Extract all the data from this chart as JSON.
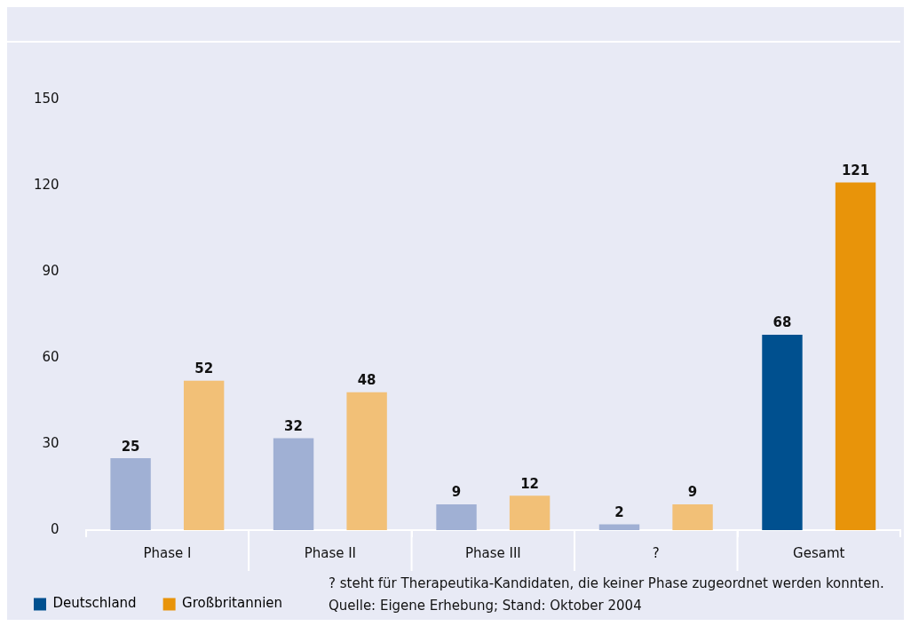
{
  "chart_data": {
    "type": "bar",
    "categories": [
      "Phase I",
      "Phase II",
      "Phase III",
      "?",
      "Gesamt"
    ],
    "series": [
      {
        "name": "Deutschland",
        "color": "#00508f",
        "colors": [
          "#a0b0d4",
          "#a0b0d4",
          "#a0b0d4",
          "#a0b0d4",
          "#00508f"
        ],
        "values": [
          25,
          32,
          9,
          2,
          68
        ]
      },
      {
        "name": "Großbritannien",
        "color": "#e8940a",
        "colors": [
          "#f2c077",
          "#f2c077",
          "#f2c077",
          "#f2c077",
          "#e8940a"
        ],
        "values": [
          52,
          48,
          12,
          9,
          121
        ]
      }
    ],
    "ylim": [
      0,
      170
    ],
    "yticks": [
      0,
      30,
      60,
      90,
      120,
      150
    ],
    "grid": false,
    "legend": "bottom left",
    "data_labels": true,
    "annotations": [
      "? steht für Therapeutika-Kandidaten, die keiner Phase zugeordnet werden konnten.",
      "Quelle: Eigene Erhebung; Stand: Oktober 2004"
    ]
  }
}
